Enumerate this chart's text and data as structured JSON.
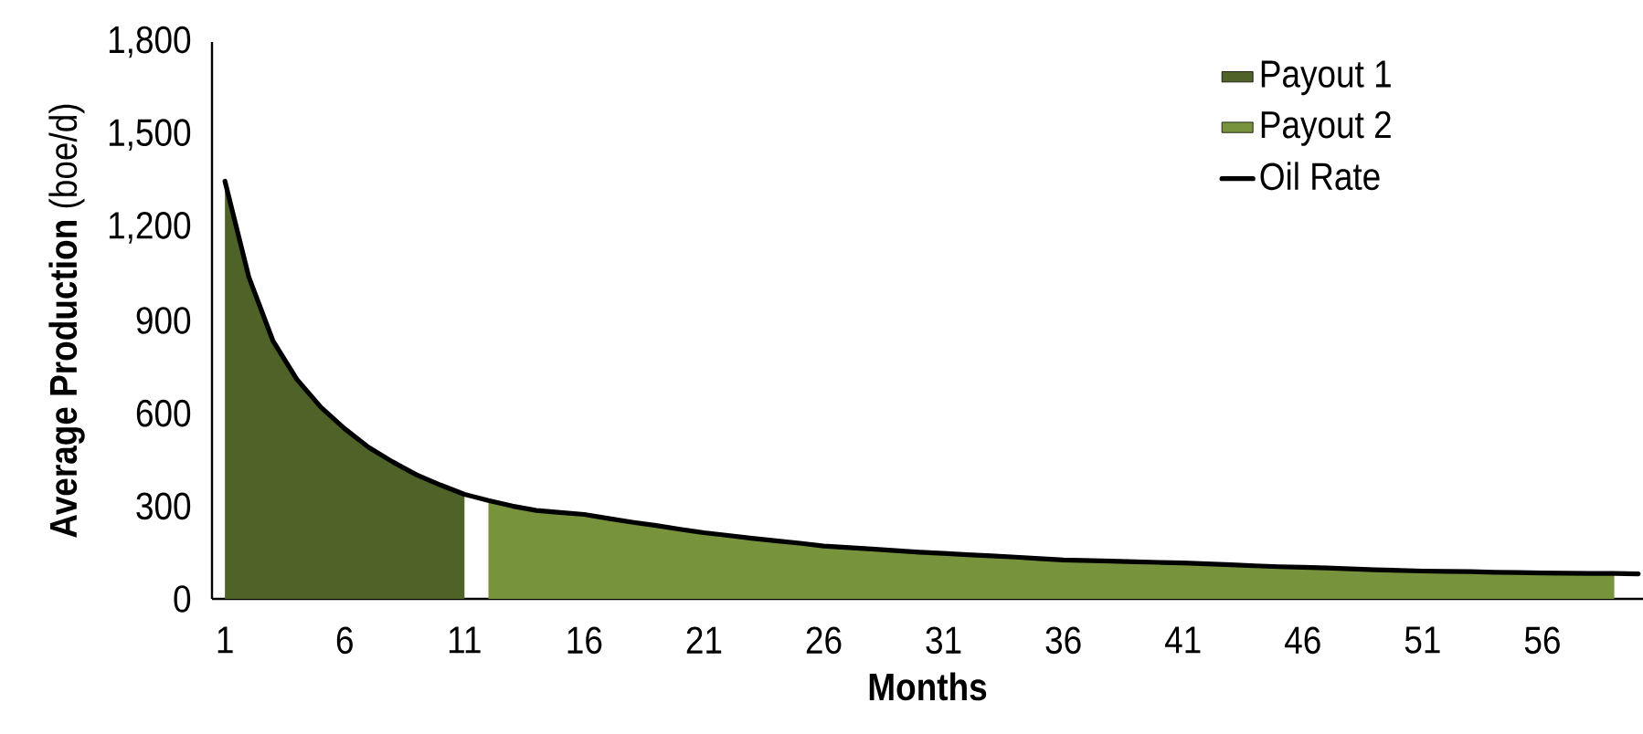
{
  "chart_data": {
    "type": "area",
    "xlabel": "Months",
    "ylabel": "**Average Production** (boe/d)",
    "categories": [
      "1",
      null,
      null,
      null,
      null,
      "6",
      null,
      null,
      null,
      null,
      "11",
      null,
      null,
      null,
      null,
      "16",
      null,
      null,
      null,
      null,
      "21",
      null,
      null,
      null,
      null,
      "26",
      null,
      null,
      null,
      null,
      "31",
      null,
      null,
      null,
      null,
      "36",
      null,
      null,
      null,
      null,
      "41",
      null,
      null,
      null,
      null,
      "46",
      null,
      null,
      null,
      null,
      "51",
      null,
      null,
      null,
      null,
      "56",
      null,
      null,
      null,
      null
    ],
    "series": [
      {
        "name": "Payout 1",
        "color": "#4f6228",
        "values": [
          1350,
          1040,
          835,
          710,
          620,
          550,
          490,
          443,
          401,
          368,
          338,
          null,
          null,
          null,
          null,
          null,
          null,
          null,
          null,
          null,
          null,
          null,
          null,
          null,
          null,
          null,
          null,
          null,
          null,
          null,
          null,
          null,
          null,
          null,
          null,
          null,
          null,
          null,
          null,
          null,
          null,
          null,
          null,
          null,
          null,
          null,
          null,
          null,
          null,
          null,
          null,
          null,
          null,
          null,
          null,
          null,
          null,
          null,
          null,
          null
        ]
      },
      {
        "name": "Payout 2",
        "color": "#77933c",
        "values": [
          null,
          null,
          null,
          null,
          null,
          null,
          null,
          null,
          null,
          null,
          null,
          318,
          300,
          286,
          279,
          273,
          260,
          248,
          237,
          225,
          214,
          205,
          196,
          188,
          180,
          171,
          166,
          161,
          156,
          151,
          147,
          143,
          139,
          135,
          130,
          126,
          124,
          122,
          120,
          118,
          116,
          113,
          110,
          107,
          104,
          102,
          100,
          97,
          94,
          92,
          90,
          89,
          88,
          86,
          85,
          84,
          83,
          82,
          82,
          null
        ]
      },
      {
        "name": "Oil Rate",
        "type": "line",
        "color": "#000000",
        "values": [
          1350,
          1040,
          835,
          710,
          620,
          550,
          490,
          443,
          401,
          368,
          338,
          318,
          300,
          286,
          279,
          273,
          260,
          248,
          237,
          225,
          214,
          205,
          196,
          188,
          180,
          171,
          166,
          161,
          156,
          151,
          147,
          143,
          139,
          135,
          130,
          126,
          124,
          122,
          120,
          118,
          116,
          113,
          110,
          107,
          104,
          102,
          100,
          97,
          94,
          92,
          90,
          89,
          88,
          86,
          85,
          84,
          83,
          82,
          82,
          81
        ]
      }
    ],
    "ylim": [
      0,
      1800
    ],
    "yticks": [
      0,
      300,
      600,
      900,
      {
        "value": 1200,
        "label": "1,200"
      },
      {
        "value": 1500,
        "label": "1,500"
      },
      {
        "value": 1800,
        "label": "1,800"
      }
    ],
    "grid": false,
    "legend": "top right",
    "line_style": "solid",
    "marker": "none"
  }
}
